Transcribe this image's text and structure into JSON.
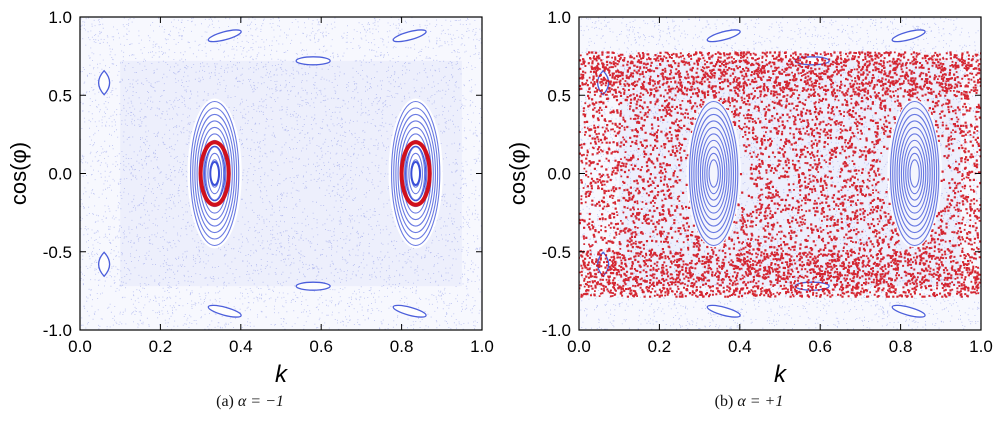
{
  "chart_data": [
    {
      "type": "scatter",
      "panel": "a",
      "caption": "(a)",
      "caption_eq": "α = −1",
      "xlabel": "k",
      "ylabel": "cos(φ)",
      "xlim": [
        0.0,
        1.0
      ],
      "ylim": [
        -1.0,
        1.0
      ],
      "xticks": [
        "0.0",
        "0.2",
        "0.4",
        "0.6",
        "0.8",
        "1.0"
      ],
      "yticks": [
        "-1.0",
        "-0.5",
        "0.0",
        "0.5",
        "1.0"
      ],
      "series": [
        {
          "role": "background orbits",
          "color": "#3a4fd8",
          "points": "dense phase-space sea with islands"
        },
        {
          "role": "highlighted trajectory",
          "color": "#d0101c",
          "regions": [
            {
              "center": [
                0.335,
                0.0
              ],
              "rx": 0.035,
              "ry": 0.1
            },
            {
              "center": [
                0.835,
                0.0
              ],
              "rx": 0.035,
              "ry": 0.1
            }
          ]
        }
      ],
      "islands": [
        {
          "center": [
            0.335,
            0.0
          ]
        },
        {
          "center": [
            0.835,
            0.0
          ]
        },
        {
          "center": [
            0.06,
            0.58
          ]
        },
        {
          "center": [
            0.06,
            -0.58
          ]
        },
        {
          "center": [
            0.36,
            0.88
          ]
        },
        {
          "center": [
            0.82,
            0.88
          ]
        },
        {
          "center": [
            0.58,
            0.72
          ]
        },
        {
          "center": [
            0.36,
            -0.88
          ]
        },
        {
          "center": [
            0.82,
            -0.88
          ]
        },
        {
          "center": [
            0.58,
            -0.72
          ]
        }
      ]
    },
    {
      "type": "scatter",
      "panel": "b",
      "caption": "(b)",
      "caption_eq": "α = +1",
      "xlabel": "k",
      "ylabel": "cos(φ)",
      "xlim": [
        0.0,
        1.0
      ],
      "ylim": [
        -1.0,
        1.0
      ],
      "xticks": [
        "0.0",
        "0.2",
        "0.4",
        "0.6",
        "0.8",
        "1.0"
      ],
      "yticks": [
        "-1.0",
        "-0.5",
        "0.0",
        "0.5",
        "1.0"
      ],
      "series": [
        {
          "role": "background orbits",
          "color": "#3a4fd8",
          "points": "dense phase-space sea with islands"
        },
        {
          "role": "highlighted trajectory",
          "color": "#d0101c",
          "band": {
            "ymin": -0.78,
            "ymax": 0.78
          }
        }
      ],
      "islands": [
        {
          "center": [
            0.335,
            0.0
          ]
        },
        {
          "center": [
            0.835,
            0.0
          ]
        },
        {
          "center": [
            0.06,
            0.58
          ]
        },
        {
          "center": [
            0.06,
            -0.58
          ]
        },
        {
          "center": [
            0.36,
            0.88
          ]
        },
        {
          "center": [
            0.82,
            0.88
          ]
        },
        {
          "center": [
            0.58,
            0.72
          ]
        },
        {
          "center": [
            0.36,
            -0.88
          ]
        },
        {
          "center": [
            0.82,
            -0.88
          ]
        },
        {
          "center": [
            0.58,
            -0.72
          ]
        }
      ]
    }
  ]
}
